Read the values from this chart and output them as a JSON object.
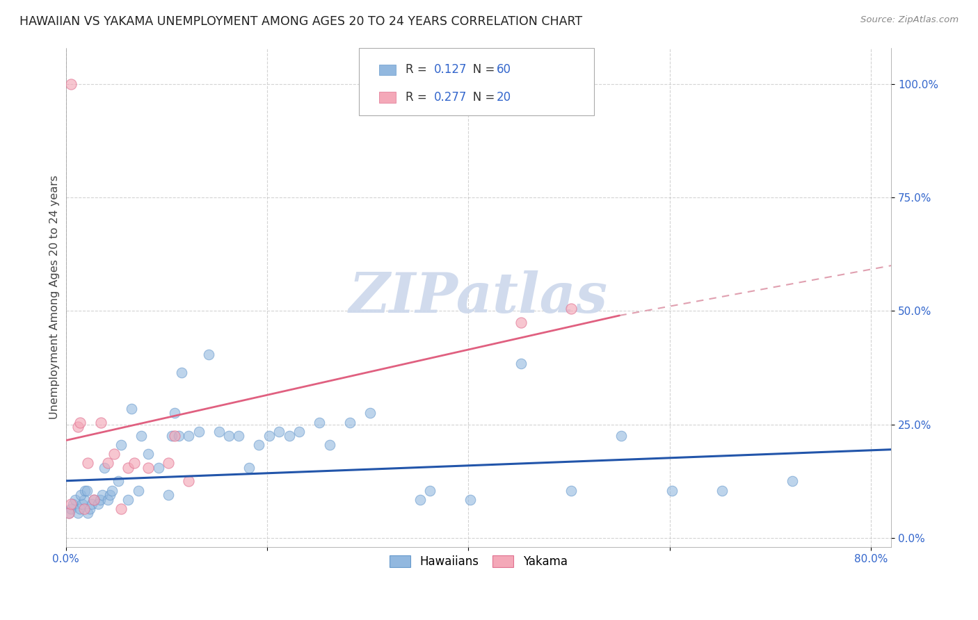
{
  "title": "HAWAIIAN VS YAKAMA UNEMPLOYMENT AMONG AGES 20 TO 24 YEARS CORRELATION CHART",
  "source": "Source: ZipAtlas.com",
  "ylabel": "Unemployment Among Ages 20 to 24 years",
  "xlim": [
    0.0,
    0.82
  ],
  "ylim": [
    -0.02,
    1.08
  ],
  "yticks": [
    0.0,
    0.25,
    0.5,
    0.75,
    1.0
  ],
  "ytick_labels": [
    "0.0%",
    "25.0%",
    "50.0%",
    "75.0%",
    "100.0%"
  ],
  "xticks": [
    0.0,
    0.2,
    0.4,
    0.6,
    0.8
  ],
  "xtick_labels": [
    "0.0%",
    "",
    "",
    "",
    "80.0%"
  ],
  "hawaiians_color": "#92b8df",
  "yakama_color": "#f4a8b8",
  "hawaiians_edge": "#6699cc",
  "yakama_edge": "#e07090",
  "blue_line_color": "#2255aa",
  "pink_line_color": "#e06080",
  "pink_dash_color": "#e0a0b0",
  "legend_text_color": "#333333",
  "legend_val_color": "#3366cc",
  "hawaiians_R": "0.127",
  "hawaiians_N": "60",
  "yakama_R": "0.277",
  "yakama_N": "20",
  "watermark_text": "ZIPatlas",
  "watermark_color": "#ccd8ec",
  "blue_line": [
    0.0,
    0.82,
    0.126,
    0.195
  ],
  "pink_line_solid": [
    0.0,
    0.55,
    0.215,
    0.49
  ],
  "pink_line_dash": [
    0.55,
    0.82,
    0.49,
    0.6
  ],
  "hawaiians_x": [
    0.003,
    0.005,
    0.007,
    0.009,
    0.012,
    0.014,
    0.016,
    0.018,
    0.015,
    0.019,
    0.022,
    0.024,
    0.026,
    0.028,
    0.021,
    0.032,
    0.034,
    0.036,
    0.038,
    0.042,
    0.044,
    0.046,
    0.052,
    0.055,
    0.062,
    0.065,
    0.072,
    0.075,
    0.082,
    0.092,
    0.102,
    0.105,
    0.108,
    0.112,
    0.115,
    0.122,
    0.132,
    0.142,
    0.152,
    0.162,
    0.172,
    0.182,
    0.192,
    0.202,
    0.212,
    0.222,
    0.232,
    0.252,
    0.262,
    0.282,
    0.302,
    0.352,
    0.362,
    0.402,
    0.452,
    0.502,
    0.552,
    0.602,
    0.652,
    0.722
  ],
  "hawaiians_y": [
    0.055,
    0.065,
    0.075,
    0.085,
    0.055,
    0.065,
    0.075,
    0.085,
    0.095,
    0.105,
    0.055,
    0.065,
    0.075,
    0.085,
    0.105,
    0.075,
    0.085,
    0.095,
    0.155,
    0.085,
    0.095,
    0.105,
    0.125,
    0.205,
    0.085,
    0.285,
    0.105,
    0.225,
    0.185,
    0.155,
    0.095,
    0.225,
    0.275,
    0.225,
    0.365,
    0.225,
    0.235,
    0.405,
    0.235,
    0.225,
    0.225,
    0.155,
    0.205,
    0.225,
    0.235,
    0.225,
    0.235,
    0.255,
    0.205,
    0.255,
    0.275,
    0.085,
    0.105,
    0.085,
    0.385,
    0.105,
    0.225,
    0.105,
    0.105,
    0.125
  ],
  "yakama_x": [
    0.003,
    0.005,
    0.005,
    0.012,
    0.014,
    0.018,
    0.022,
    0.028,
    0.035,
    0.042,
    0.048,
    0.055,
    0.062,
    0.068,
    0.082,
    0.102,
    0.108,
    0.122,
    0.452,
    0.502
  ],
  "yakama_y": [
    0.055,
    0.075,
    1.0,
    0.245,
    0.255,
    0.065,
    0.165,
    0.085,
    0.255,
    0.165,
    0.185,
    0.065,
    0.155,
    0.165,
    0.155,
    0.165,
    0.225,
    0.125,
    0.475,
    0.505
  ]
}
